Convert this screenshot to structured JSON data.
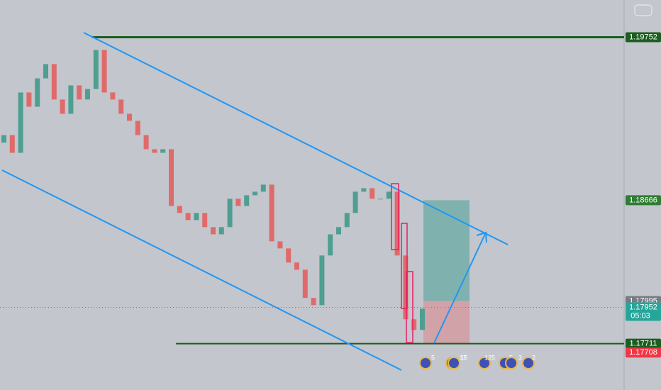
{
  "chart_data": {
    "type": "candlestick",
    "ylim": [
      1.1752,
      1.2
    ],
    "open": [
      1.1905,
      1.191,
      1.18982,
      1.19384,
      1.19289,
      1.19478,
      1.19573,
      1.19337,
      1.19242,
      1.19431,
      1.19337,
      1.19407,
      1.19667,
      1.19384,
      1.19337,
      1.19242,
      1.19195,
      1.191,
      1.19006,
      1.18982,
      1.19006,
      1.18628,
      1.18581,
      1.18534,
      1.18581,
      1.18487,
      1.18439,
      1.18487,
      1.18676,
      1.18628,
      1.18699,
      1.18723,
      1.1877,
      1.18392,
      1.18345,
      1.18251,
      1.18203,
      1.18015,
      1.17967,
      1.18298,
      1.18439,
      1.18487,
      1.18581,
      1.18723,
      1.18746,
      1.18676,
      1.18676,
      1.18723,
      1.18298,
      1.17873,
      1.17802
    ],
    "close": [
      1.191,
      1.18982,
      1.19384,
      1.19289,
      1.19478,
      1.19573,
      1.19337,
      1.19242,
      1.19431,
      1.19337,
      1.19407,
      1.19667,
      1.19384,
      1.19337,
      1.19242,
      1.19195,
      1.191,
      1.19006,
      1.18982,
      1.19006,
      1.18628,
      1.18581,
      1.18534,
      1.18581,
      1.18487,
      1.18439,
      1.18487,
      1.18676,
      1.18628,
      1.18699,
      1.18723,
      1.1877,
      1.18392,
      1.18345,
      1.18251,
      1.18203,
      1.18015,
      1.17967,
      1.18298,
      1.18439,
      1.18487,
      1.18581,
      1.18723,
      1.18746,
      1.18676,
      1.18676,
      1.18723,
      1.18298,
      1.17873,
      1.17802,
      1.17944
    ],
    "up_color": "#4f9e92",
    "down_color": "#e06a6a",
    "price_labels": [
      {
        "value": 1.19752,
        "color": "#1b5e20"
      },
      {
        "value": 1.18666,
        "color": "#2e7d32"
      },
      {
        "value": 1.17995,
        "color": "#787b86"
      },
      {
        "value": 1.17952,
        "color": "#26a69a"
      },
      {
        "value": 1.17711,
        "color": "#1b5e20"
      },
      {
        "value": 1.17708,
        "color": "#f23645"
      }
    ],
    "countdown": "05:03",
    "events": [
      "5",
      "15",
      "37",
      "125",
      "5",
      "3",
      "2"
    ]
  }
}
